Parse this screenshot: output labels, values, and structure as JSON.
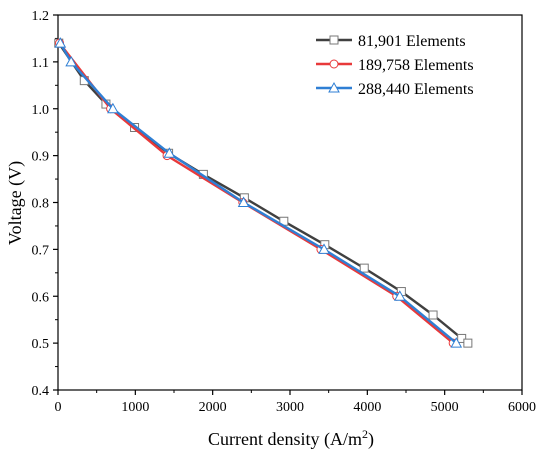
{
  "chart_data": {
    "type": "line",
    "title": "",
    "xlabel": "Current density (A/m",
    "xlabel_sup": "2",
    "xlabel_close": ")",
    "ylabel": "Voltage (V)",
    "xlim": [
      0,
      6000
    ],
    "ylim": [
      0.4,
      1.2
    ],
    "xticks": [
      0,
      1000,
      2000,
      3000,
      4000,
      5000,
      6000
    ],
    "yticks": [
      0.4,
      0.5,
      0.6,
      0.7,
      0.8,
      0.9,
      1.0,
      1.1,
      1.2
    ],
    "xtick_labels": [
      "0",
      "1000",
      "2000",
      "3000",
      "4000",
      "5000",
      "6000"
    ],
    "ytick_labels": [
      "0.4",
      "0.5",
      "0.6",
      "0.7",
      "0.8",
      "0.9",
      "1.0",
      "1.1",
      "1.2"
    ],
    "grid": false,
    "legend_position": "top-right",
    "series": [
      {
        "name": "81,901 Elements",
        "color": "#404040",
        "marker": "square",
        "x": [
          10,
          340,
          620,
          990,
          1430,
          1880,
          2410,
          2920,
          3450,
          3960,
          4440,
          4850,
          5220,
          5300
        ],
        "y": [
          1.14,
          1.06,
          1.01,
          0.96,
          0.905,
          0.86,
          0.81,
          0.76,
          0.71,
          0.66,
          0.61,
          0.56,
          0.51,
          0.5
        ]
      },
      {
        "name": "189,758 Elements",
        "color": "#e8393a",
        "marker": "circle",
        "x": [
          20,
          680,
          1410,
          2390,
          3400,
          4380,
          5110
        ],
        "y": [
          1.14,
          1.0,
          0.9,
          0.8,
          0.7,
          0.6,
          0.5
        ]
      },
      {
        "name": "288,440 Elements",
        "color": "#2f7fd4",
        "marker": "triangle",
        "x": [
          30,
          170,
          710,
          1440,
          2400,
          3440,
          4420,
          5150
        ],
        "y": [
          1.14,
          1.1,
          1.0,
          0.905,
          0.8,
          0.7,
          0.6,
          0.5
        ]
      }
    ]
  }
}
